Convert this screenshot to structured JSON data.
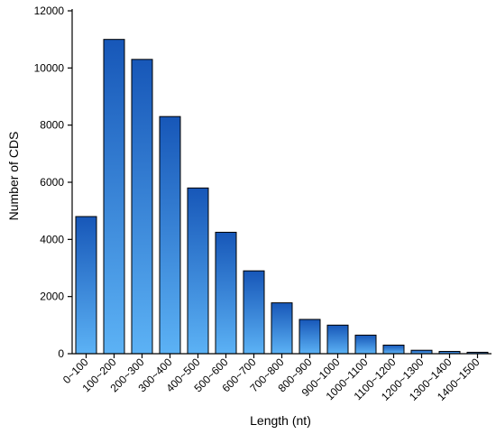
{
  "chart_data": {
    "type": "bar",
    "title": "",
    "xlabel": "Length (nt)",
    "ylabel": "Number of CDS",
    "categories": [
      "0~100",
      "100~200",
      "200~300",
      "300~400",
      "400~500",
      "500~600",
      "600~700",
      "700~800",
      "800~900",
      "900~1000",
      "1000~1100",
      "1100~1200",
      "1200~1300",
      "1300~1400",
      "1400~1500"
    ],
    "values": [
      4800,
      11000,
      10300,
      8300,
      5800,
      4250,
      2900,
      1780,
      1200,
      1000,
      650,
      300,
      120,
      80,
      50
    ],
    "ylim": [
      0,
      12000
    ],
    "yticks": [
      0,
      2000,
      4000,
      6000,
      8000,
      10000,
      12000
    ],
    "grid": false,
    "colors": {
      "bar_top": "#1757b8",
      "bar_bottom": "#5cb2f5",
      "bar_stroke": "#000000",
      "axis": "#000000"
    }
  }
}
